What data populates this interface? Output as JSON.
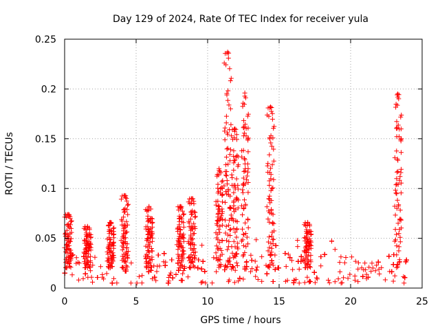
{
  "chart_data": {
    "type": "scatter",
    "title": "Day 129 of 2024, Rate Of TEC Index for receiver yula",
    "xlabel": "GPS time / hours",
    "ylabel": "ROTI / TECUs",
    "xlim": [
      0,
      25
    ],
    "ylim": [
      0,
      0.25
    ],
    "xticks": [
      0,
      5,
      10,
      15,
      20,
      25
    ],
    "yticks": [
      0,
      0.05,
      0.1,
      0.15,
      0.2,
      0.25
    ],
    "xtick_labels": [
      "0",
      "5",
      "10",
      "15",
      "20",
      "25"
    ],
    "ytick_labels": [
      "0",
      "0.05",
      "0.1",
      "0.15",
      "0.2",
      "0.25"
    ],
    "grid": true,
    "marker": "+",
    "color": "#ff0000",
    "x_range": [
      0,
      24
    ],
    "baseline_band": [
      0.005,
      0.035
    ],
    "spikes": [
      {
        "x": 0.25,
        "max": 0.074
      },
      {
        "x": 1.6,
        "max": 0.062
      },
      {
        "x": 3.2,
        "max": 0.066
      },
      {
        "x": 4.2,
        "max": 0.093
      },
      {
        "x": 5.9,
        "max": 0.082
      },
      {
        "x": 8.1,
        "max": 0.082
      },
      {
        "x": 8.9,
        "max": 0.09
      },
      {
        "x": 10.8,
        "max": 0.12
      },
      {
        "x": 11.4,
        "max": 0.237
      },
      {
        "x": 11.9,
        "max": 0.16
      },
      {
        "x": 12.6,
        "max": 0.196
      },
      {
        "x": 14.4,
        "max": 0.182
      },
      {
        "x": 17.0,
        "max": 0.066
      },
      {
        "x": 23.3,
        "max": 0.195
      }
    ]
  }
}
